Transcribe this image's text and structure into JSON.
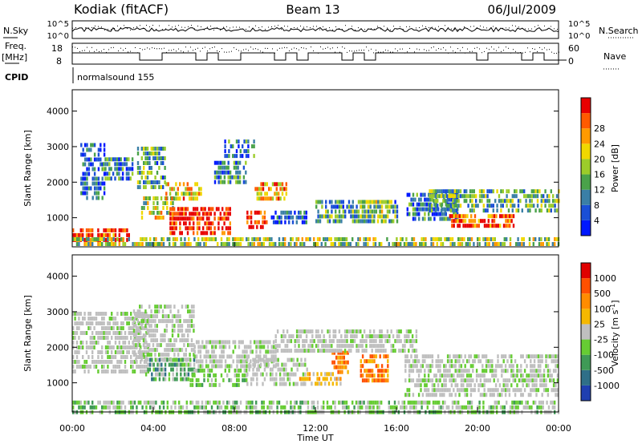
{
  "header": {
    "station": "Kodiak (fitACF)",
    "beam": "Beam 13",
    "date": "06/Jul/2009"
  },
  "aux_panels": {
    "nsky_label": "N.Sky",
    "nsky_ticks": [
      "10^5",
      "10^0"
    ],
    "nsearch_label": "N.Search",
    "nsearch_ticks": [
      "10^5",
      "10^0"
    ],
    "freq_label_1": "Freq.",
    "freq_label_2": "[MHz]",
    "freq_ticks": [
      "18",
      "8"
    ],
    "nave_label": "Nave",
    "nave_ticks": [
      "60",
      "0"
    ],
    "cpid_label": "CPID",
    "cpid_value": "normalsound 155"
  },
  "chart_data": [
    {
      "type": "heatmap",
      "panel": "power",
      "xlabel": "Time UT",
      "ylabel": "Slant Range [km]",
      "xlim_hours": [
        0,
        24
      ],
      "ylim": [
        180,
        4600
      ],
      "x_ticks": [
        "00:00",
        "04:00",
        "08:00",
        "12:00",
        "16:00",
        "20:00",
        "00:00"
      ],
      "y_ticks": [
        1000,
        2000,
        3000,
        4000
      ],
      "colorbar": {
        "label": "Power [dB]",
        "ticks": [
          "4",
          "8",
          "12",
          "16",
          "20",
          "24",
          "28"
        ],
        "colors": [
          "#0018ff",
          "#1a4fd6",
          "#3a7fa6",
          "#4aa24a",
          "#9ccc2a",
          "#f0d800",
          "#ff9a00",
          "#ff5a00",
          "#e80000"
        ]
      },
      "regions": [
        {
          "t0": 0.0,
          "t1": 2.8,
          "r0": 350,
          "r1": 700,
          "level": 0.9
        },
        {
          "t0": 0.4,
          "t1": 1.6,
          "r0": 1500,
          "r1": 3100,
          "level": 0.2
        },
        {
          "t0": 1.5,
          "t1": 3.0,
          "r0": 2100,
          "r1": 2700,
          "level": 0.3
        },
        {
          "t0": 3.2,
          "t1": 4.6,
          "r0": 1900,
          "r1": 3000,
          "level": 0.35
        },
        {
          "t0": 3.4,
          "t1": 5.0,
          "r0": 1000,
          "r1": 1600,
          "level": 0.55
        },
        {
          "t0": 4.8,
          "t1": 7.8,
          "r0": 600,
          "r1": 1300,
          "level": 0.95
        },
        {
          "t0": 4.6,
          "t1": 6.4,
          "r0": 1500,
          "r1": 2000,
          "level": 0.65
        },
        {
          "t0": 7.0,
          "t1": 8.6,
          "r0": 2000,
          "r1": 2600,
          "level": 0.3
        },
        {
          "t0": 7.5,
          "t1": 9.0,
          "r0": 2700,
          "r1": 3200,
          "level": 0.25
        },
        {
          "t0": 8.6,
          "t1": 9.6,
          "r0": 700,
          "r1": 1200,
          "level": 0.9
        },
        {
          "t0": 9.0,
          "t1": 10.6,
          "r0": 1500,
          "r1": 2000,
          "level": 0.7
        },
        {
          "t0": 9.8,
          "t1": 11.6,
          "r0": 900,
          "r1": 1200,
          "level": 0.15
        },
        {
          "t0": 12.0,
          "t1": 16.0,
          "r0": 900,
          "r1": 1500,
          "level": 0.35
        },
        {
          "t0": 14.2,
          "t1": 15.6,
          "r0": 1000,
          "r1": 1500,
          "level": 0.45
        },
        {
          "t0": 16.5,
          "t1": 19.0,
          "r0": 1000,
          "r1": 1700,
          "level": 0.25
        },
        {
          "t0": 18.6,
          "t1": 21.8,
          "r0": 750,
          "r1": 1100,
          "level": 0.85
        },
        {
          "t0": 17.6,
          "t1": 24.0,
          "r0": 1200,
          "r1": 1800,
          "level": 0.4
        },
        {
          "t0": 0.0,
          "t1": 24.0,
          "r0": 180,
          "r1": 450,
          "level": 0.5
        }
      ]
    },
    {
      "type": "heatmap",
      "panel": "velocity",
      "xlabel": "Time UT",
      "ylabel": "Slant Range [km]",
      "xlim_hours": [
        0,
        24
      ],
      "ylim": [
        180,
        4600
      ],
      "x_ticks": [
        "00:00",
        "04:00",
        "08:00",
        "12:00",
        "16:00",
        "20:00",
        "00:00"
      ],
      "y_ticks": [
        1000,
        2000,
        3000,
        4000
      ],
      "colorbar": {
        "label": "Velocity [m s-1]",
        "label_main": "Velocity [m s",
        "label_exp": "-1",
        "label_close": "]",
        "ticks": [
          "1000",
          "500",
          "100",
          "25",
          "-25",
          "-100",
          "-500",
          "-1000"
        ],
        "colors": [
          "#1f3fb0",
          "#2f6f88",
          "#3f9a56",
          "#66cc33",
          "#bfbfbf",
          "#f5b800",
          "#ff8c00",
          "#ff5000",
          "#e00000"
        ]
      },
      "regions": [
        {
          "t0": 0.0,
          "t1": 3.8,
          "r0": 1300,
          "r1": 3000,
          "cls": "gray"
        },
        {
          "t0": 3.0,
          "t1": 6.0,
          "r0": 1600,
          "r1": 3200,
          "cls": "gray"
        },
        {
          "t0": 3.6,
          "t1": 6.0,
          "r0": 1100,
          "r1": 1700,
          "cls": "teal"
        },
        {
          "t0": 5.8,
          "t1": 8.6,
          "r0": 950,
          "r1": 1400,
          "cls": "green"
        },
        {
          "t0": 6.0,
          "t1": 10.0,
          "r0": 1500,
          "r1": 2200,
          "cls": "gray"
        },
        {
          "t0": 8.6,
          "t1": 11.6,
          "r0": 900,
          "r1": 1700,
          "cls": "gray"
        },
        {
          "t0": 11.2,
          "t1": 13.2,
          "r0": 1000,
          "r1": 1300,
          "cls": "yellow"
        },
        {
          "t0": 12.8,
          "t1": 13.6,
          "r0": 1300,
          "r1": 1900,
          "cls": "orange"
        },
        {
          "t0": 14.2,
          "t1": 15.6,
          "r0": 1100,
          "r1": 1800,
          "cls": "orange"
        },
        {
          "t0": 10.0,
          "t1": 17.0,
          "r0": 1900,
          "r1": 2500,
          "cls": "gray"
        },
        {
          "t0": 16.4,
          "t1": 24.0,
          "r0": 600,
          "r1": 1800,
          "cls": "gray"
        },
        {
          "t0": 0.0,
          "t1": 24.0,
          "r0": 180,
          "r1": 500,
          "cls": "lowgreen"
        }
      ]
    }
  ]
}
